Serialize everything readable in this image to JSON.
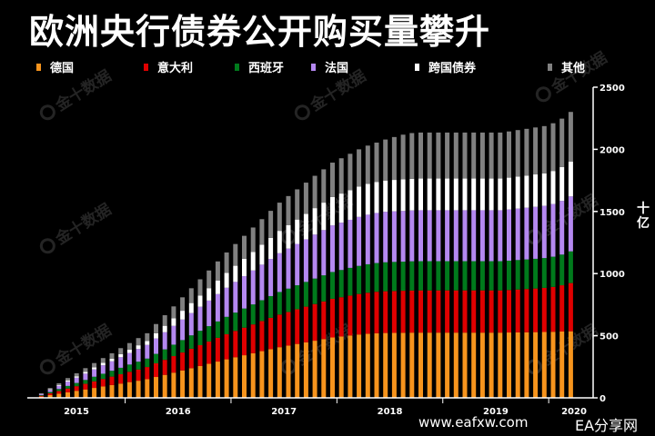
{
  "chart_data": {
    "type": "bar",
    "stacked": true,
    "title": "欧洲央行债券公开购买量攀升",
    "ylabel": "十亿",
    "ylim": [
      0,
      2500
    ],
    "y_ticks": [
      0,
      500,
      1000,
      1500,
      2000,
      2500
    ],
    "x_year_labels": [
      "2015",
      "2016",
      "2017",
      "2018",
      "2019",
      "2020"
    ],
    "legend_position": "top",
    "grid": false,
    "months": [
      "2015-03",
      "2015-04",
      "2015-05",
      "2015-06",
      "2015-07",
      "2015-08",
      "2015-09",
      "2015-10",
      "2015-11",
      "2015-12",
      "2016-01",
      "2016-02",
      "2016-03",
      "2016-04",
      "2016-05",
      "2016-06",
      "2016-07",
      "2016-08",
      "2016-09",
      "2016-10",
      "2016-11",
      "2016-12",
      "2017-01",
      "2017-02",
      "2017-03",
      "2017-04",
      "2017-05",
      "2017-06",
      "2017-07",
      "2017-08",
      "2017-09",
      "2017-10",
      "2017-11",
      "2017-12",
      "2018-01",
      "2018-02",
      "2018-03",
      "2018-04",
      "2018-05",
      "2018-06",
      "2018-07",
      "2018-08",
      "2018-09",
      "2018-10",
      "2018-11",
      "2018-12",
      "2019-01",
      "2019-02",
      "2019-03",
      "2019-04",
      "2019-05",
      "2019-06",
      "2019-07",
      "2019-08",
      "2019-09",
      "2019-10",
      "2019-11",
      "2019-12",
      "2020-01",
      "2020-02",
      "2020-03"
    ],
    "series": [
      {
        "name": "德国",
        "color": "#f7941d",
        "values": [
          10,
          22,
          33,
          45,
          57,
          68,
          80,
          92,
          103,
          115,
          127,
          138,
          150,
          168,
          185,
          203,
          221,
          239,
          256,
          274,
          292,
          310,
          327,
          343,
          359,
          376,
          392,
          408,
          421,
          434,
          447,
          460,
          473,
          486,
          494,
          502,
          510,
          516,
          520,
          522,
          523,
          524,
          525,
          525,
          525,
          525,
          525,
          525,
          525,
          525,
          525,
          525,
          525,
          526,
          527,
          528,
          529,
          530,
          532,
          534,
          536
        ]
      },
      {
        "name": "意大利",
        "color": "#e00000",
        "values": [
          7,
          15,
          22,
          30,
          37,
          45,
          53,
          60,
          68,
          75,
          83,
          90,
          98,
          110,
          121,
          133,
          144,
          156,
          168,
          179,
          191,
          202,
          212,
          222,
          232,
          242,
          252,
          262,
          270,
          279,
          287,
          295,
          303,
          311,
          316,
          321,
          326,
          330,
          334,
          336,
          337,
          338,
          339,
          340,
          340,
          340,
          340,
          340,
          340,
          340,
          340,
          340,
          340,
          342,
          345,
          348,
          351,
          355,
          361,
          372,
          388
        ]
      },
      {
        "name": "西班牙",
        "color": "#007a1c",
        "values": [
          5,
          10,
          16,
          21,
          26,
          31,
          37,
          42,
          47,
          52,
          58,
          63,
          68,
          76,
          84,
          92,
          100,
          108,
          116,
          124,
          132,
          140,
          147,
          154,
          161,
          168,
          175,
          182,
          188,
          193,
          199,
          205,
          210,
          216,
          219,
          223,
          226,
          229,
          231,
          233,
          234,
          234,
          235,
          235,
          235,
          235,
          235,
          235,
          235,
          235,
          235,
          235,
          235,
          236,
          237,
          238,
          239,
          240,
          243,
          247,
          255
        ]
      },
      {
        "name": "法国",
        "color": "#b488f0",
        "values": [
          8,
          17,
          25,
          34,
          42,
          51,
          59,
          68,
          76,
          85,
          93,
          102,
          110,
          124,
          138,
          151,
          165,
          179,
          193,
          206,
          220,
          234,
          247,
          260,
          273,
          286,
          299,
          312,
          322,
          333,
          343,
          354,
          364,
          375,
          381,
          387,
          394,
          399,
          403,
          406,
          407,
          408,
          409,
          410,
          410,
          410,
          410,
          410,
          410,
          410,
          410,
          410,
          410,
          412,
          414,
          416,
          418,
          420,
          424,
          432,
          442
        ]
      },
      {
        "name": "跨国债券",
        "color": "#ffffff",
        "values": [
          2,
          5,
          7,
          10,
          12,
          15,
          17,
          20,
          22,
          25,
          27,
          30,
          32,
          42,
          52,
          61,
          71,
          81,
          91,
          100,
          110,
          120,
          130,
          140,
          150,
          160,
          170,
          180,
          188,
          196,
          204,
          213,
          221,
          229,
          234,
          239,
          244,
          248,
          250,
          252,
          253,
          254,
          255,
          255,
          255,
          255,
          255,
          255,
          255,
          255,
          255,
          255,
          255,
          256,
          258,
          259,
          261,
          262,
          266,
          272,
          280
        ]
      },
      {
        "name": "其他",
        "color": "#808080",
        "values": [
          5,
          10,
          14,
          19,
          24,
          29,
          34,
          38,
          43,
          48,
          53,
          58,
          62,
          74,
          85,
          96,
          108,
          119,
          130,
          142,
          153,
          164,
          175,
          185,
          196,
          206,
          217,
          227,
          235,
          243,
          252,
          260,
          268,
          276,
          284,
          292,
          300,
          308,
          316,
          330,
          345,
          360,
          368,
          370,
          370,
          370,
          370,
          370,
          370,
          370,
          370,
          370,
          370,
          372,
          374,
          376,
          378,
          380,
          384,
          390,
          400
        ]
      }
    ]
  },
  "watermark": {
    "text": "金十数据"
  },
  "footer": {
    "site": "www.eafxw.com",
    "brand": "EA分享网"
  }
}
